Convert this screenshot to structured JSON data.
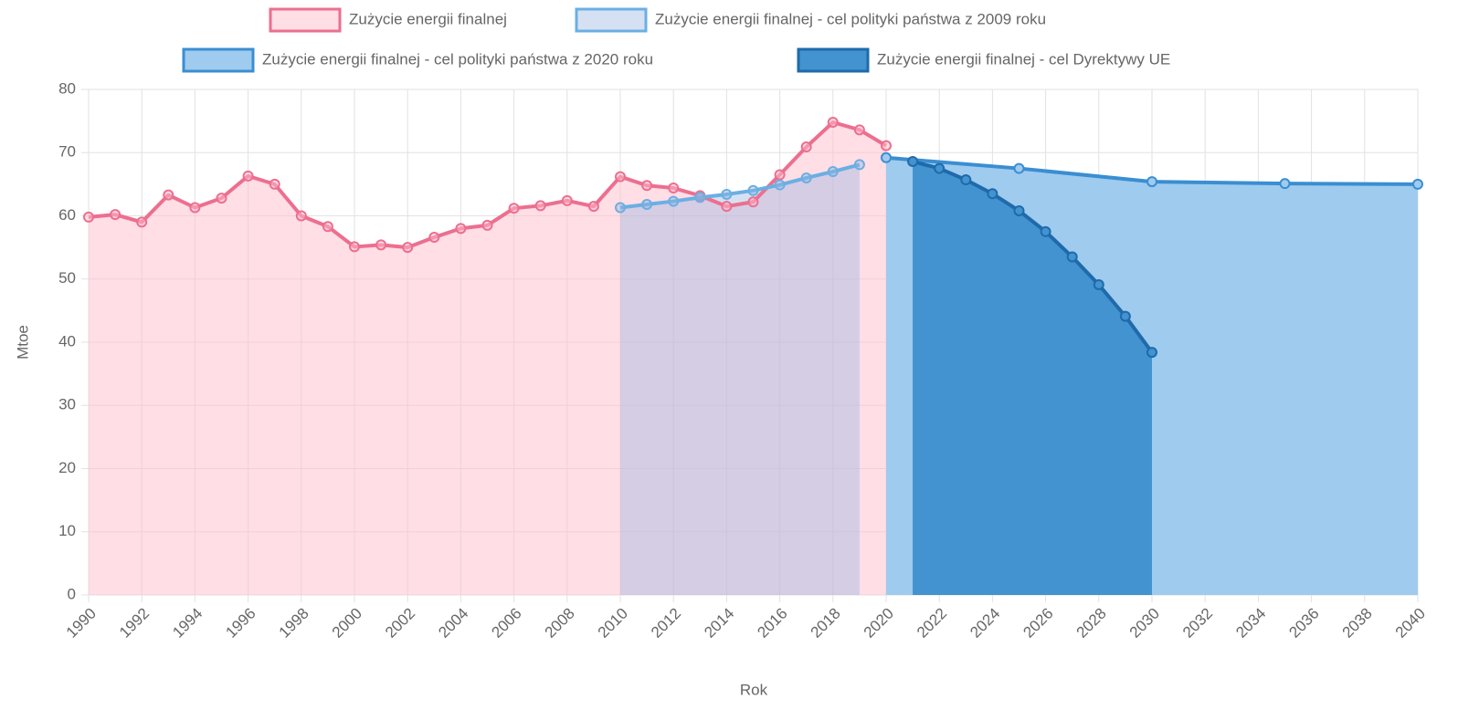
{
  "chart_data": {
    "type": "line",
    "xlabel": "Rok",
    "ylabel": "Mtoe",
    "xlim": [
      1990,
      2040
    ],
    "ylim": [
      0,
      80
    ],
    "xticks": [
      1990,
      1992,
      1994,
      1996,
      1998,
      2000,
      2002,
      2004,
      2006,
      2008,
      2010,
      2012,
      2014,
      2016,
      2018,
      2020,
      2022,
      2024,
      2026,
      2028,
      2030,
      2032,
      2034,
      2036,
      2038,
      2040
    ],
    "yticks": [
      0,
      10,
      20,
      30,
      40,
      50,
      60,
      70,
      80
    ],
    "grid": true,
    "legend": "top",
    "series": [
      {
        "name": "Zużycie energii finalnej",
        "color": "#ec6f8f",
        "fill_color": "rgba(255,190,205,0.5)",
        "x": [
          1990,
          1991,
          1992,
          1993,
          1994,
          1995,
          1996,
          1997,
          1998,
          1999,
          2000,
          2001,
          2002,
          2003,
          2004,
          2005,
          2006,
          2007,
          2008,
          2009,
          2010,
          2011,
          2012,
          2013,
          2014,
          2015,
          2016,
          2017,
          2018,
          2019,
          2020
        ],
        "values": [
          59.8,
          60.2,
          59.0,
          63.3,
          61.3,
          62.8,
          66.3,
          65.0,
          60.0,
          58.3,
          55.1,
          55.4,
          55.0,
          56.6,
          58.0,
          58.5,
          61.2,
          61.6,
          62.4,
          61.5,
          66.2,
          64.8,
          64.4,
          63.2,
          61.5,
          62.2,
          66.5,
          70.9,
          74.8,
          73.6,
          71.1
        ]
      },
      {
        "name": "Zużycie energii finalnej - cel polityki państwa z 2009 roku",
        "color": "#6aafe3",
        "fill_color": "rgba(150,180,225,0.4)",
        "x": [
          2010,
          2011,
          2012,
          2013,
          2014,
          2015,
          2016,
          2017,
          2018,
          2019
        ],
        "values": [
          61.3,
          61.8,
          62.3,
          62.9,
          63.4,
          64.0,
          64.9,
          66.0,
          67.0,
          68.1
        ]
      },
      {
        "name": "Zużycie energii finalnej - cel polityki państwa z 2020 roku",
        "color": "#3a8ed2",
        "fill_color": "#9fcbee",
        "x": [
          2020,
          2025,
          2030,
          2035,
          2040
        ],
        "values": [
          69.2,
          67.5,
          65.4,
          65.1,
          65.0
        ]
      },
      {
        "name": "Zużycie energii finalnej - cel Dyrektywy UE",
        "color": "#1f6aab",
        "fill_color": "#4293cf",
        "x": [
          2021,
          2022,
          2023,
          2024,
          2025,
          2026,
          2027,
          2028,
          2029,
          2030
        ],
        "values": [
          68.6,
          67.5,
          65.7,
          63.5,
          60.8,
          57.5,
          53.5,
          49.1,
          44.1,
          38.4
        ]
      }
    ]
  }
}
